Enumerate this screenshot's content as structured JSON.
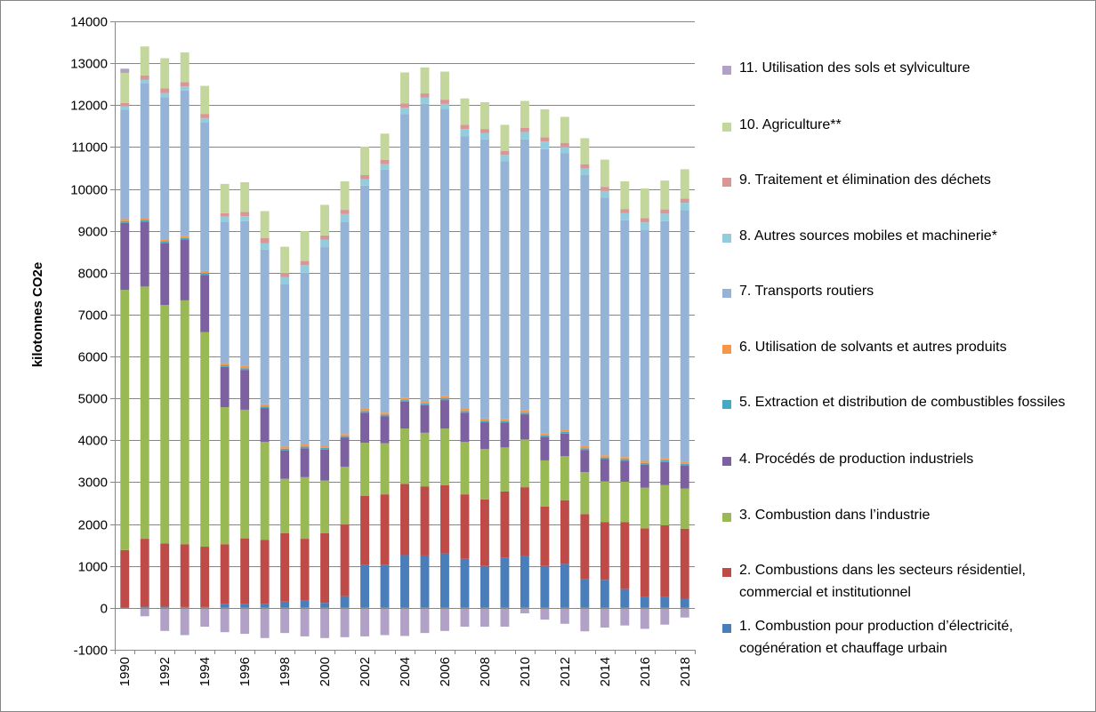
{
  "chart_data": {
    "type": "bar",
    "stacked": true,
    "ylabel": "kilotonnes CO2e",
    "ylim": [
      -1000,
      14000
    ],
    "yticks": [
      -1000,
      0,
      1000,
      2000,
      3000,
      4000,
      5000,
      6000,
      7000,
      8000,
      9000,
      10000,
      11000,
      12000,
      13000,
      14000
    ],
    "xtick_labels": [
      "1990",
      "1992",
      "1994",
      "1996",
      "1998",
      "2000",
      "2002",
      "2004",
      "2006",
      "2008",
      "2010",
      "2012",
      "2014",
      "2016",
      "2018"
    ],
    "categories": [
      "1990",
      "1991",
      "1992",
      "1993",
      "1994",
      "1995",
      "1996",
      "1997",
      "1998",
      "1999",
      "2000",
      "2001",
      "2002",
      "2003",
      "2004",
      "2005",
      "2006",
      "2007",
      "2008",
      "2009",
      "2010",
      "2011",
      "2012",
      "2013",
      "2014",
      "2015",
      "2016",
      "2017",
      "2018"
    ],
    "legend_position": "right",
    "series": [
      {
        "name": "1. Combustion pour production d’électricité, cogénération et chauffage urbain",
        "color": "#4a7ebb",
        "values": [
          0,
          30,
          30,
          20,
          20,
          100,
          100,
          100,
          150,
          180,
          120,
          280,
          1020,
          1030,
          1260,
          1250,
          1300,
          1170,
          1000,
          1200,
          1230,
          1000,
          1050,
          680,
          670,
          450,
          260,
          260,
          210
        ]
      },
      {
        "name": "2. Combustions dans les secteurs résidentiel, commercial et institutionnel",
        "color": "#be4b48",
        "values": [
          1380,
          1620,
          1510,
          1500,
          1440,
          1420,
          1560,
          1520,
          1630,
          1470,
          1660,
          1710,
          1650,
          1680,
          1700,
          1650,
          1630,
          1540,
          1590,
          1580,
          1650,
          1420,
          1520,
          1560,
          1380,
          1600,
          1640,
          1710,
          1680
        ]
      },
      {
        "name": "3. Combustion dans l’industrie",
        "color": "#98b954",
        "values": [
          6210,
          6020,
          5690,
          5820,
          5120,
          3270,
          3070,
          2340,
          1300,
          1470,
          1260,
          1380,
          1270,
          1220,
          1320,
          1280,
          1350,
          1250,
          1200,
          1050,
          1140,
          1100,
          1050,
          1000,
          970,
          960,
          970,
          960,
          960
        ]
      },
      {
        "name": "4. Procédés de production industriels",
        "color": "#7d60a0",
        "values": [
          1600,
          1550,
          1480,
          1450,
          1370,
          960,
          950,
          810,
          680,
          690,
          740,
          690,
          720,
          640,
          640,
          660,
          680,
          700,
          640,
          590,
          600,
          560,
          540,
          530,
          530,
          500,
          550,
          550,
          550
        ]
      },
      {
        "name": "5. Extraction et distribution de combustibles fossiles",
        "color": "#46aac5",
        "values": [
          40,
          40,
          40,
          40,
          40,
          40,
          40,
          40,
          40,
          40,
          40,
          40,
          40,
          40,
          40,
          40,
          40,
          40,
          40,
          40,
          40,
          40,
          40,
          40,
          40,
          40,
          40,
          40,
          40
        ]
      },
      {
        "name": "6. Utilisation de solvants et autres produits",
        "color": "#f79646",
        "values": [
          50,
          50,
          50,
          50,
          50,
          50,
          50,
          50,
          50,
          50,
          50,
          50,
          50,
          50,
          50,
          50,
          50,
          50,
          50,
          50,
          50,
          50,
          50,
          50,
          50,
          50,
          50,
          50,
          50
        ]
      },
      {
        "name": "7. Transports routiers",
        "color": "#95b3d7",
        "values": [
          2610,
          3220,
          3390,
          3470,
          3550,
          3380,
          3460,
          3690,
          3870,
          4100,
          4740,
          5070,
          5330,
          5800,
          6780,
          7100,
          6850,
          6510,
          6660,
          6150,
          6470,
          6780,
          6600,
          6470,
          6150,
          5650,
          5520,
          5660,
          6000
        ]
      },
      {
        "name": "8. Autres sources mobiles et machinerie*",
        "color": "#93cddd",
        "values": [
          80,
          80,
          100,
          100,
          100,
          120,
          120,
          150,
          180,
          180,
          180,
          180,
          150,
          130,
          150,
          150,
          130,
          170,
          150,
          150,
          180,
          180,
          150,
          160,
          160,
          170,
          170,
          180,
          180
        ]
      },
      {
        "name": "9. Traitement et élimination des déchets",
        "color": "#d99694",
        "values": [
          80,
          100,
          110,
          100,
          100,
          80,
          100,
          130,
          100,
          100,
          100,
          100,
          100,
          100,
          100,
          100,
          100,
          100,
          100,
          100,
          100,
          100,
          100,
          100,
          100,
          100,
          100,
          100,
          100
        ]
      },
      {
        "name": "10. Agriculture**",
        "color": "#c3d69b",
        "values": [
          720,
          690,
          720,
          710,
          670,
          700,
          710,
          640,
          620,
          710,
          730,
          680,
          680,
          630,
          740,
          620,
          670,
          630,
          640,
          620,
          640,
          670,
          620,
          620,
          650,
          660,
          710,
          690,
          700
        ]
      },
      {
        "name": "11. Utilisation des sols et sylviculture",
        "color": "#b2a1c7",
        "values": [
          100,
          -200,
          -550,
          -650,
          -450,
          -580,
          -620,
          -720,
          -600,
          -680,
          -720,
          -700,
          -680,
          -650,
          -670,
          -600,
          -550,
          -450,
          -450,
          -450,
          -130,
          -280,
          -380,
          -560,
          -470,
          -420,
          -500,
          -400,
          -230
        ]
      }
    ]
  }
}
